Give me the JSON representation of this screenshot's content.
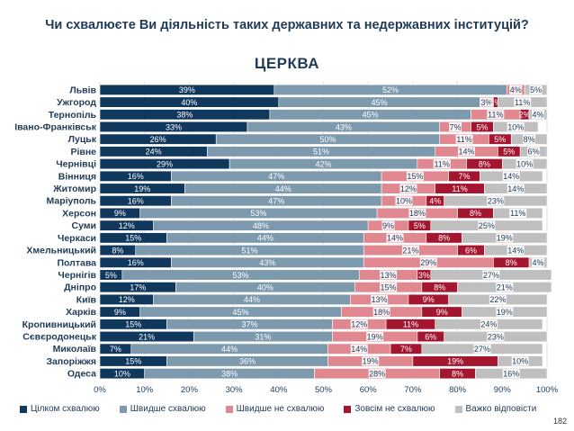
{
  "page": {
    "title": "Чи схвалюєте Ви діяльність таких державних та недержавних інституцій?",
    "subtitle": "ЦЕРКВА",
    "page_number": "182"
  },
  "chart_data": {
    "type": "bar",
    "orientation": "horizontal",
    "stacked": true,
    "title": "ЦЕРКВА",
    "categories": [
      "Львів",
      "Ужгород",
      "Тернопіль",
      "Івано-Франківськ",
      "Луцьк",
      "Рівне",
      "Чернівці",
      "Вінниця",
      "Житомир",
      "Маріуполь",
      "Херсон",
      "Суми",
      "Черкаси",
      "Хмельницький",
      "Полтава",
      "Чернігів",
      "Дніпро",
      "Київ",
      "Харків",
      "Кропивницький",
      "Сєвєродонецьк",
      "Миколаїв",
      "Запоріжжя",
      "Одеса"
    ],
    "series": [
      {
        "name": "Цілком схвалюю",
        "color": "#10375c",
        "values": [
          39,
          40,
          38,
          33,
          26,
          24,
          29,
          16,
          19,
          16,
          9,
          12,
          15,
          8,
          16,
          5,
          17,
          12,
          9,
          15,
          21,
          7,
          15,
          10
        ]
      },
      {
        "name": "Швидше схвалюю",
        "color": "#7c99ae",
        "values": [
          52,
          45,
          45,
          43,
          50,
          51,
          42,
          47,
          44,
          47,
          53,
          48,
          44,
          51,
          43,
          53,
          40,
          44,
          45,
          37,
          31,
          44,
          36,
          38
        ]
      },
      {
        "name": "Швидше не схвалюю",
        "color": "#e0878f",
        "values": [
          4,
          3,
          11,
          7,
          11,
          14,
          11,
          15,
          12,
          10,
          18,
          9,
          14,
          21,
          29,
          13,
          15,
          13,
          18,
          12,
          19,
          14,
          19,
          28
        ]
      },
      {
        "name": "Зовсім не схвалюю",
        "color": "#a4162f",
        "values": [
          0,
          1,
          2,
          5,
          5,
          5,
          8,
          7,
          11,
          4,
          8,
          5,
          8,
          6,
          8,
          3,
          8,
          9,
          9,
          11,
          6,
          7,
          19,
          8
        ]
      },
      {
        "name": "Важко відповісти",
        "color": "#bfbfbf",
        "values": [
          5,
          11,
          4,
          10,
          8,
          6,
          10,
          14,
          14,
          23,
          11,
          25,
          19,
          14,
          4,
          27,
          21,
          22,
          19,
          24,
          23,
          27,
          10,
          16
        ]
      }
    ],
    "xlim": [
      0,
      100
    ],
    "x_ticks": [
      "0%",
      "10%",
      "20%",
      "30%",
      "40%",
      "50%",
      "60%",
      "70%",
      "80%",
      "90%",
      "100%"
    ],
    "value_suffix": "%",
    "grid": true,
    "legend": "bottom"
  }
}
